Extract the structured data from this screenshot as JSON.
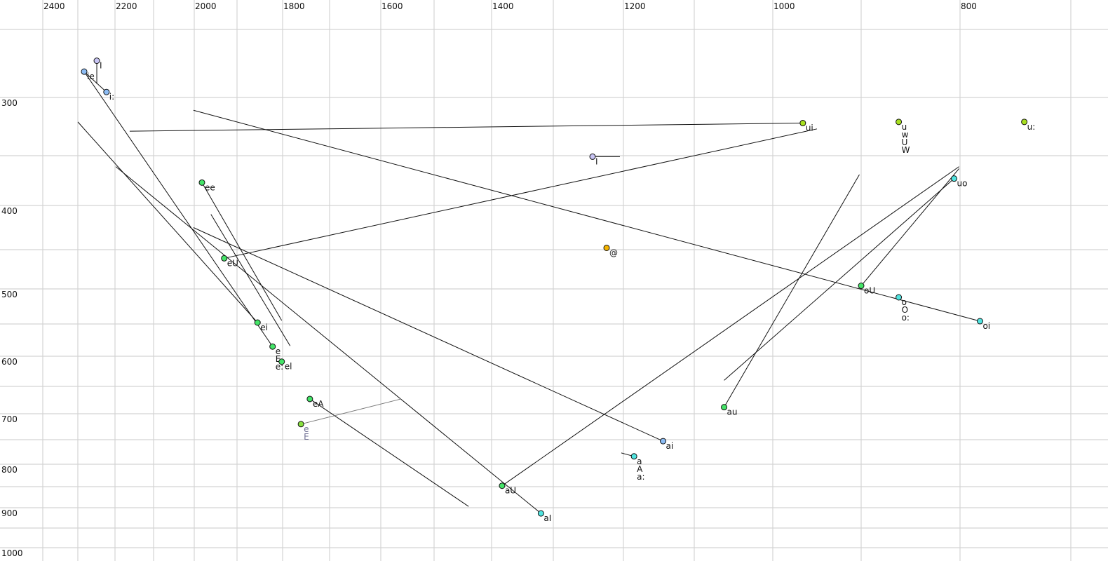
{
  "chart_data": {
    "type": "scatter",
    "title": "",
    "xlabel": "",
    "ylabel": "",
    "x_axis": {
      "reversed": true,
      "position": "top",
      "scale": "nonlinear",
      "tick_labels": [
        2400,
        2200,
        2000,
        1800,
        1600,
        1400,
        1200,
        1000,
        800
      ],
      "gridlines": [
        2400,
        2300,
        2200,
        2100,
        2000,
        1900,
        1800,
        1700,
        1600,
        1500,
        1400,
        1300,
        1200,
        1100,
        1000,
        900,
        800,
        700
      ]
    },
    "y_axis": {
      "reversed": true,
      "position": "left",
      "scale": "nonlinear",
      "tick_labels": [
        300,
        400,
        500,
        600,
        700,
        800,
        900,
        1000
      ],
      "gridlines": [
        250,
        300,
        350,
        400,
        450,
        500,
        550,
        600,
        650,
        700,
        750,
        800,
        850,
        900,
        950,
        1000
      ]
    },
    "grid": true,
    "points": [
      {
        "x": 2283,
        "y": 281,
        "labels": [
          "ie"
        ],
        "color": "#8cbcf4"
      },
      {
        "x": 2249,
        "y": 273,
        "labels": [
          "I"
        ],
        "color": "#c8c4f4"
      },
      {
        "x": 2223,
        "y": 296,
        "labels": [
          "i:"
        ],
        "color": "#8cbcf4"
      },
      {
        "x": 966,
        "y": 322,
        "labels": [
          "ui"
        ],
        "color": "#a8e020"
      },
      {
        "x": 862,
        "y": 321,
        "labels": [
          "u",
          "w",
          "U",
          "W"
        ],
        "color": "#a8e020"
      },
      {
        "x": 742,
        "y": 321,
        "labels": [
          "u:"
        ],
        "color": "#a8e020"
      },
      {
        "x": 1244,
        "y": 351,
        "labels": [
          "I"
        ],
        "color": "#c8c4f4"
      },
      {
        "x": 1982,
        "y": 377,
        "labels": [
          "ee"
        ],
        "color": "#44e468"
      },
      {
        "x": 806,
        "y": 373,
        "labels": [
          "uo"
        ],
        "color": "#50e4e0"
      },
      {
        "x": 1224,
        "y": 448,
        "labels": [
          "@"
        ],
        "color": "#f4b400"
      },
      {
        "x": 1930,
        "y": 461,
        "labels": [
          "eU"
        ],
        "color": "#44e468"
      },
      {
        "x": 900,
        "y": 496,
        "labels": [
          "oU"
        ],
        "color": "#44e468"
      },
      {
        "x": 862,
        "y": 512,
        "labels": [
          "o",
          "O",
          "o:"
        ],
        "color": "#50e4e0"
      },
      {
        "x": 782,
        "y": 546,
        "labels": [
          "oi"
        ],
        "color": "#50e4e0"
      },
      {
        "x": 1855,
        "y": 548,
        "labels": [
          "ei"
        ],
        "color": "#44e468"
      },
      {
        "x": 1822,
        "y": 585,
        "labels": [
          "e",
          "E",
          "e:"
        ],
        "color": "#44e468"
      },
      {
        "x": 1802,
        "y": 609,
        "labels": [
          "el"
        ],
        "color": "#44e468"
      },
      {
        "x": 1742,
        "y": 673,
        "labels": [
          "eA"
        ],
        "color": "#44e468"
      },
      {
        "x": 1761,
        "y": 720,
        "labels": [
          "e",
          "E"
        ],
        "color": "#88e040",
        "label_color": "#707094"
      },
      {
        "x": 1062,
        "y": 688,
        "labels": [
          "au"
        ],
        "color": "#44e468"
      },
      {
        "x": 1144,
        "y": 753,
        "labels": [
          "ai"
        ],
        "color": "#8cbcf4"
      },
      {
        "x": 1185,
        "y": 784,
        "labels": [
          "a",
          "A",
          "a:"
        ],
        "color": "#50e4e0"
      },
      {
        "x": 1383,
        "y": 848,
        "labels": [
          "aU"
        ],
        "color": "#44e468"
      },
      {
        "x": 1320,
        "y": 914,
        "labels": [
          "aI"
        ],
        "color": "#50e4e0"
      }
    ],
    "trajectories": [
      {
        "from": [
          2249,
          273
        ],
        "to": [
          2249,
          290
        ]
      },
      {
        "from": [
          2283,
          281
        ],
        "to": [
          1822,
          585
        ]
      },
      {
        "from": [
          2283,
          281
        ],
        "to": [
          2223,
          296
        ]
      },
      {
        "from": [
          2162,
          329
        ],
        "to": [
          966,
          322
        ]
      },
      {
        "from": [
          2002,
          311
        ],
        "to": [
          782,
          546
        ]
      },
      {
        "from": [
          2300,
          321
        ],
        "to": [
          1855,
          548
        ]
      },
      {
        "from": [
          2198,
          361
        ],
        "to": [
          1320,
          914
        ]
      },
      {
        "from": [
          1982,
          377
        ],
        "to": [
          1802,
          545
        ]
      },
      {
        "from": [
          1961,
          410
        ],
        "to": [
          1784,
          584
        ]
      },
      {
        "from": [
          2002,
          425
        ],
        "to": [
          1144,
          753
        ]
      },
      {
        "from": [
          1930,
          461
        ],
        "to": [
          950,
          327
        ]
      },
      {
        "from": [
          1742,
          673
        ],
        "to": [
          1440,
          897
        ]
      },
      {
        "from": [
          1761,
          720
        ],
        "to": [
          1562,
          673
        ],
        "color": "#777777"
      },
      {
        "from": [
          1244,
          351
        ],
        "to": [
          1205,
          351
        ]
      },
      {
        "from": [
          902,
          369
        ],
        "to": [
          1062,
          688
        ]
      },
      {
        "from": [
          1383,
          848
        ],
        "to": [
          801,
          361
        ]
      },
      {
        "from": [
          1062,
          640
        ],
        "to": [
          806,
          373
        ]
      },
      {
        "from": [
          900,
          496
        ],
        "to": [
          801,
          363
        ]
      },
      {
        "from": [
          1203,
          777
        ],
        "to": [
          1185,
          784
        ]
      }
    ]
  }
}
